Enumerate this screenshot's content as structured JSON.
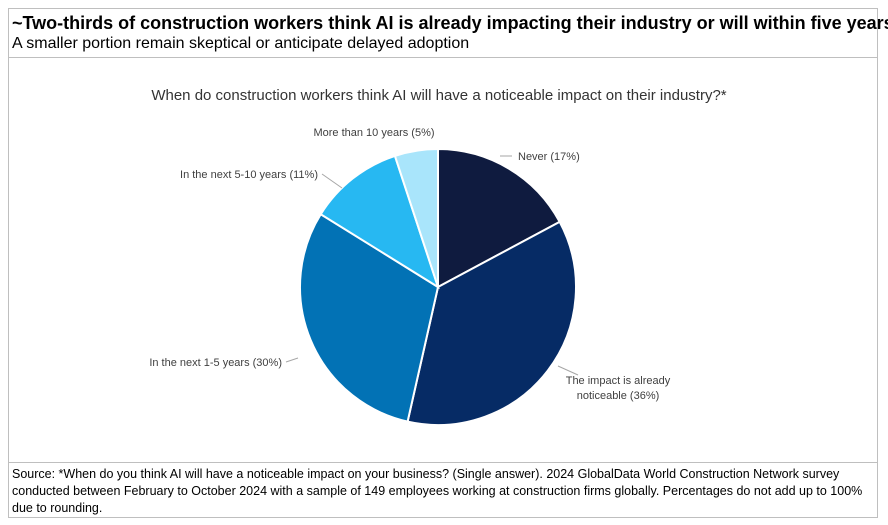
{
  "header": {
    "title": "~Two-thirds of construction workers think AI is already impacting their industry or will within five years",
    "subtitle": "A smaller portion remain skeptical or anticipate delayed adoption"
  },
  "footer": {
    "source": "Source: *When do you think AI will have a noticeable impact on your business? (Single answer). 2024 GlobalData World Construction Network survey conducted between February to October 2024 with a sample of 149 employees working at construction firms globally. Percentages do not add up to 100% due to rounding."
  },
  "chart_data": {
    "type": "pie",
    "title": "When do construction workers think AI will have a noticeable impact on their industry?*",
    "slices": [
      {
        "label": "Never",
        "value": 17,
        "color": "#0f1b3f",
        "label_lines": [
          "Never (17%)"
        ]
      },
      {
        "label": "The impact is already noticeable",
        "value": 36,
        "color": "#062b65",
        "label_lines": [
          "The impact is already",
          "noticeable (36%)"
        ]
      },
      {
        "label": "In the next 1-5 years",
        "value": 30,
        "color": "#0272b5",
        "label_lines": [
          "In the next 1-5 years (30%)"
        ]
      },
      {
        "label": "In the next 5-10 years",
        "value": 11,
        "color": "#27b8f2",
        "label_lines": [
          "In the next 5-10 years (11%)"
        ]
      },
      {
        "label": "More than 10 years",
        "value": 5,
        "color": "#a9e5fb",
        "label_lines": [
          "More than 10 years (5%)"
        ]
      }
    ]
  }
}
